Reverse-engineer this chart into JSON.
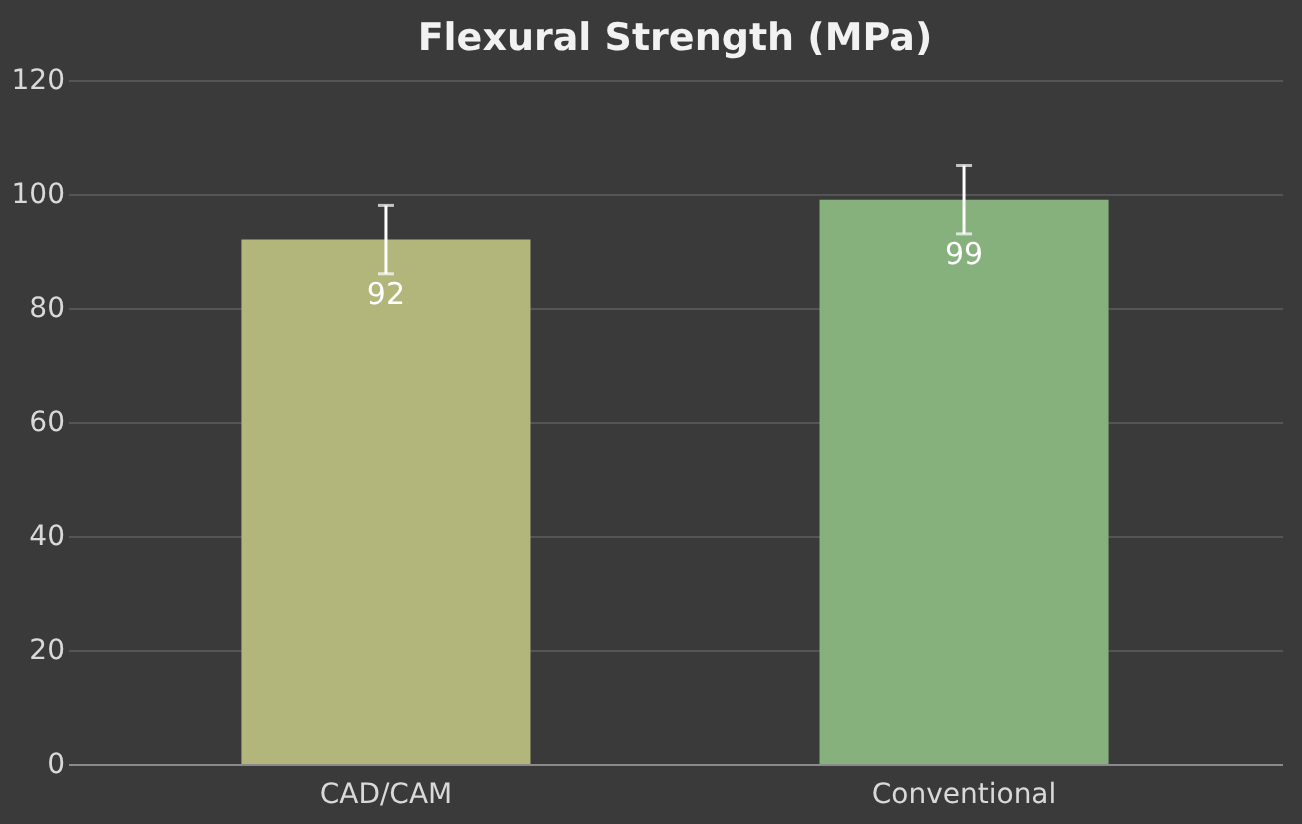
{
  "chart_data": {
    "type": "bar",
    "title": "Flexural Strength (MPa)",
    "categories": [
      "CAD/CAM",
      "Conventional"
    ],
    "values": [
      92,
      99
    ],
    "colors": [
      "#b3b67a",
      "#87b17c"
    ],
    "errors": [
      6,
      6
    ],
    "data_labels": true,
    "ylim": [
      0,
      120
    ],
    "yticks": [
      0,
      20,
      40,
      60,
      80,
      100,
      120
    ],
    "grid": "y"
  }
}
